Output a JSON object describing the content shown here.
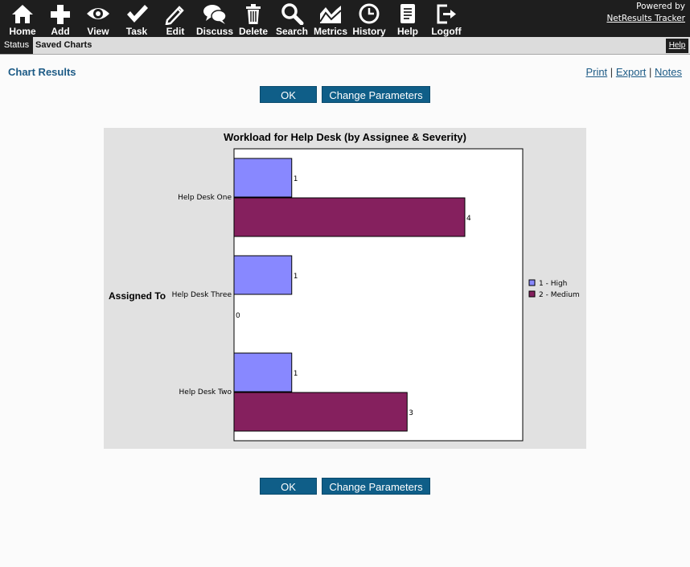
{
  "toolbar": {
    "items": [
      {
        "label": "Home",
        "icon": "home-icon"
      },
      {
        "label": "Add",
        "icon": "plus-icon"
      },
      {
        "label": "View",
        "icon": "eye-icon"
      },
      {
        "label": "Task",
        "icon": "check-icon"
      },
      {
        "label": "Edit",
        "icon": "pencil-icon"
      },
      {
        "label": "Discuss",
        "icon": "chat-bubbles-icon"
      },
      {
        "label": "Delete",
        "icon": "trash-icon"
      },
      {
        "label": "Search",
        "icon": "magnifier-icon"
      },
      {
        "label": "Metrics",
        "icon": "chart-icon"
      },
      {
        "label": "History",
        "icon": "clock-icon"
      },
      {
        "label": "Help",
        "icon": "document-icon"
      },
      {
        "label": "Logoff",
        "icon": "logout-icon"
      }
    ],
    "powered_by": "Powered by",
    "brand": "NetResults Tracker"
  },
  "subbar": {
    "status": "Status",
    "saved": "Saved Charts",
    "help": "Help"
  },
  "page": {
    "title": "Chart Results",
    "links": {
      "print": "Print",
      "export": "Export",
      "notes": "Notes",
      "sep": "|"
    },
    "ok_label": "OK",
    "change_label": "Change Parameters"
  },
  "colors": {
    "high": "#8888ff",
    "medium": "#85205e",
    "accent": "#0f5e88"
  },
  "chart_data": {
    "type": "bar",
    "orientation": "horizontal",
    "title": "Workload for Help Desk (by Assignee & Severity)",
    "ylabel": "Assigned To",
    "categories": [
      "Help Desk One",
      "Help Desk Three",
      "Help Desk Two"
    ],
    "series": [
      {
        "name": "1 - High",
        "values": [
          1,
          1,
          1
        ]
      },
      {
        "name": "2 - Medium",
        "values": [
          4,
          0,
          3
        ]
      }
    ],
    "xlim": [
      0,
      5
    ],
    "legend": "right",
    "grid": false
  }
}
